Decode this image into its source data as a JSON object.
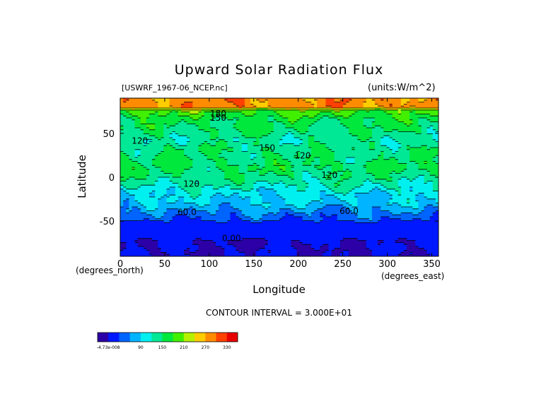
{
  "chart_data": {
    "type": "heatmap",
    "title": "Upward Solar Radiation Flux",
    "subtitle_left": "[USWRF_1967-06_NCEP.nc]",
    "subtitle_right": "(units:W/m^2)",
    "xlabel": "Longitude",
    "ylabel": "Latitude",
    "x_unit_label": "(degrees_east)",
    "y_unit_label": "(degrees_north)",
    "xlim": [
      0,
      357.5
    ],
    "ylim": [
      -90,
      90
    ],
    "x_ticks": [
      0,
      50,
      100,
      150,
      200,
      250,
      300,
      350
    ],
    "y_ticks": [
      -50,
      0,
      50
    ],
    "contour_interval_text": "CONTOUR INTERVAL = 3.000E+01",
    "contour_labels": [
      {
        "text": "180",
        "lon": 110,
        "lat": 72
      },
      {
        "text": "150",
        "lon": 110,
        "lat": 67
      },
      {
        "text": "120",
        "lon": 22,
        "lat": 41
      },
      {
        "text": "150",
        "lon": 165,
        "lat": 33
      },
      {
        "text": "120",
        "lon": 205,
        "lat": 24
      },
      {
        "text": "120",
        "lon": 235,
        "lat": 2
      },
      {
        "text": "120",
        "lon": 80,
        "lat": -8
      },
      {
        "text": "60.0",
        "lon": 75,
        "lat": -40
      },
      {
        "text": "60.0",
        "lon": 257,
        "lat": -39
      },
      {
        "text": "0.00",
        "lon": 125,
        "lat": -70
      }
    ],
    "zonal_profile": [
      {
        "lat": 88,
        "value": 285
      },
      {
        "lat": 80,
        "value": 285
      },
      {
        "lat": 76,
        "value": 195
      },
      {
        "lat": 66,
        "value": 160
      },
      {
        "lat": 55,
        "value": 150
      },
      {
        "lat": 42,
        "value": 130
      },
      {
        "lat": 32,
        "value": 145
      },
      {
        "lat": 22,
        "value": 145
      },
      {
        "lat": 12,
        "value": 155
      },
      {
        "lat": 0,
        "value": 140
      },
      {
        "lat": -8,
        "value": 125
      },
      {
        "lat": -18,
        "value": 100
      },
      {
        "lat": -30,
        "value": 85
      },
      {
        "lat": -40,
        "value": 55
      },
      {
        "lat": -52,
        "value": 25
      },
      {
        "lat": -62,
        "value": 15
      },
      {
        "lat": -72,
        "value": 0
      },
      {
        "lat": -90,
        "value": 0
      }
    ],
    "colorbar": {
      "colors": [
        "#2c00a6",
        "#0018ff",
        "#0064ff",
        "#00b4ff",
        "#00f0f0",
        "#00e896",
        "#00e83c",
        "#40f000",
        "#b4f000",
        "#ffcc00",
        "#ff8c00",
        "#ff4000",
        "#e80000"
      ],
      "labels": [
        "-4.73e-008",
        "90",
        "150",
        "210",
        "270",
        "330"
      ],
      "label_positions": [
        -4.73e-08,
        90,
        150,
        210,
        270,
        330
      ],
      "range": [
        -30,
        360
      ]
    }
  }
}
